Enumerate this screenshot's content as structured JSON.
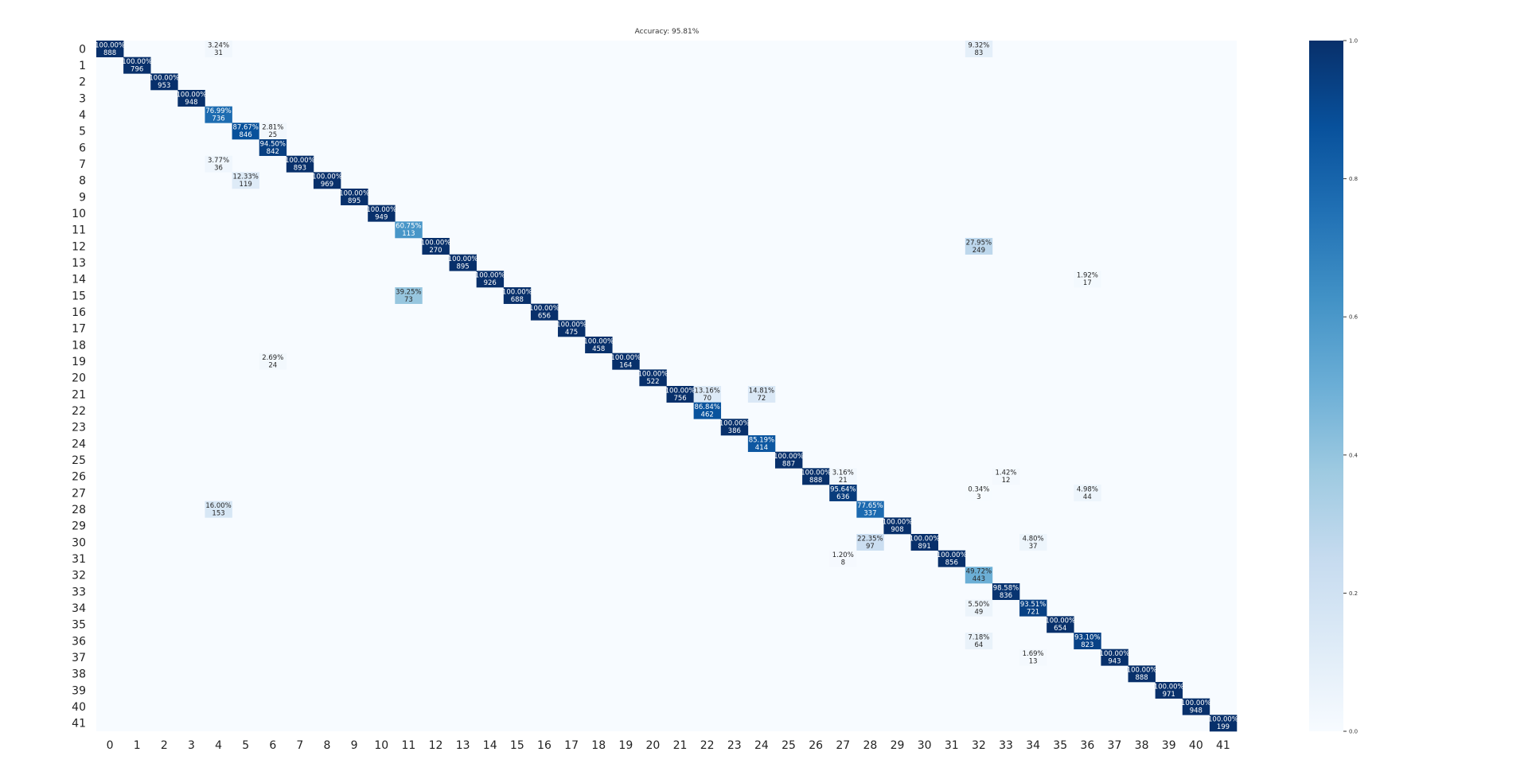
{
  "chart_data": {
    "type": "heatmap",
    "title": "Accuracy: 95.81%",
    "xlabel": "",
    "ylabel": "",
    "x_ticks": [
      "0",
      "1",
      "2",
      "3",
      "4",
      "5",
      "6",
      "7",
      "8",
      "9",
      "10",
      "11",
      "12",
      "13",
      "14",
      "15",
      "16",
      "17",
      "18",
      "19",
      "20",
      "21",
      "22",
      "23",
      "24",
      "25",
      "26",
      "27",
      "28",
      "29",
      "30",
      "31",
      "32",
      "33",
      "34",
      "35",
      "36",
      "37",
      "38",
      "39",
      "40",
      "41"
    ],
    "y_ticks": [
      "0",
      "1",
      "2",
      "3",
      "4",
      "5",
      "6",
      "7",
      "8",
      "9",
      "10",
      "11",
      "12",
      "13",
      "14",
      "15",
      "16",
      "17",
      "18",
      "19",
      "20",
      "21",
      "22",
      "23",
      "24",
      "25",
      "26",
      "27",
      "28",
      "29",
      "30",
      "31",
      "32",
      "33",
      "34",
      "35",
      "36",
      "37",
      "38",
      "39",
      "40",
      "41"
    ],
    "colorscale": "Blues",
    "colorbar": {
      "range": [
        0,
        1
      ],
      "ticks": [
        "0.0",
        "0.2",
        "0.4",
        "0.6",
        "0.8",
        "1.0"
      ]
    },
    "annotated_cells": [
      {
        "row": 0,
        "col": 0,
        "pct": "100.00%",
        "count": "888",
        "value": 1.0
      },
      {
        "row": 0,
        "col": 4,
        "pct": "3.24%",
        "count": "31",
        "value": 0.0324
      },
      {
        "row": 0,
        "col": 32,
        "pct": "9.32%",
        "count": "83",
        "value": 0.0932
      },
      {
        "row": 1,
        "col": 1,
        "pct": "100.00%",
        "count": "796",
        "value": 1.0
      },
      {
        "row": 2,
        "col": 2,
        "pct": "100.00%",
        "count": "953",
        "value": 1.0
      },
      {
        "row": 3,
        "col": 3,
        "pct": "100.00%",
        "count": "948",
        "value": 1.0
      },
      {
        "row": 4,
        "col": 4,
        "pct": "76.99%",
        "count": "736",
        "value": 0.7699
      },
      {
        "row": 5,
        "col": 5,
        "pct": "87.67%",
        "count": "846",
        "value": 0.8767
      },
      {
        "row": 5,
        "col": 6,
        "pct": "2.81%",
        "count": "25",
        "value": 0.0281
      },
      {
        "row": 6,
        "col": 6,
        "pct": "94.50%",
        "count": "842",
        "value": 0.945
      },
      {
        "row": 7,
        "col": 4,
        "pct": "3.77%",
        "count": "36",
        "value": 0.0377
      },
      {
        "row": 7,
        "col": 7,
        "pct": "100.00%",
        "count": "893",
        "value": 1.0
      },
      {
        "row": 8,
        "col": 5,
        "pct": "12.33%",
        "count": "119",
        "value": 0.1233
      },
      {
        "row": 8,
        "col": 8,
        "pct": "100.00%",
        "count": "969",
        "value": 1.0
      },
      {
        "row": 9,
        "col": 9,
        "pct": "100.00%",
        "count": "895",
        "value": 1.0
      },
      {
        "row": 10,
        "col": 10,
        "pct": "100.00%",
        "count": "949",
        "value": 1.0
      },
      {
        "row": 11,
        "col": 11,
        "pct": "60.75%",
        "count": "113",
        "value": 0.6075
      },
      {
        "row": 12,
        "col": 12,
        "pct": "100.00%",
        "count": "270",
        "value": 1.0
      },
      {
        "row": 12,
        "col": 32,
        "pct": "27.95%",
        "count": "249",
        "value": 0.2795
      },
      {
        "row": 13,
        "col": 13,
        "pct": "100.00%",
        "count": "895",
        "value": 1.0
      },
      {
        "row": 14,
        "col": 14,
        "pct": "100.00%",
        "count": "926",
        "value": 1.0
      },
      {
        "row": 14,
        "col": 36,
        "pct": "1.92%",
        "count": "17",
        "value": 0.0192
      },
      {
        "row": 15,
        "col": 11,
        "pct": "39.25%",
        "count": "73",
        "value": 0.3925
      },
      {
        "row": 15,
        "col": 15,
        "pct": "100.00%",
        "count": "688",
        "value": 1.0
      },
      {
        "row": 16,
        "col": 16,
        "pct": "100.00%",
        "count": "656",
        "value": 1.0
      },
      {
        "row": 17,
        "col": 17,
        "pct": "100.00%",
        "count": "475",
        "value": 1.0
      },
      {
        "row": 18,
        "col": 18,
        "pct": "100.00%",
        "count": "458",
        "value": 1.0
      },
      {
        "row": 19,
        "col": 6,
        "pct": "2.69%",
        "count": "24",
        "value": 0.0269
      },
      {
        "row": 19,
        "col": 19,
        "pct": "100.00%",
        "count": "164",
        "value": 1.0
      },
      {
        "row": 20,
        "col": 20,
        "pct": "100.00%",
        "count": "522",
        "value": 1.0
      },
      {
        "row": 21,
        "col": 21,
        "pct": "100.00%",
        "count": "756",
        "value": 1.0
      },
      {
        "row": 21,
        "col": 22,
        "pct": "13.16%",
        "count": "70",
        "value": 0.1316
      },
      {
        "row": 21,
        "col": 24,
        "pct": "14.81%",
        "count": "72",
        "value": 0.1481
      },
      {
        "row": 22,
        "col": 22,
        "pct": "86.84%",
        "count": "462",
        "value": 0.8684
      },
      {
        "row": 23,
        "col": 23,
        "pct": "100.00%",
        "count": "386",
        "value": 1.0
      },
      {
        "row": 24,
        "col": 24,
        "pct": "85.19%",
        "count": "414",
        "value": 0.8519
      },
      {
        "row": 25,
        "col": 25,
        "pct": "100.00%",
        "count": "887",
        "value": 1.0
      },
      {
        "row": 26,
        "col": 26,
        "pct": "100.00%",
        "count": "888",
        "value": 1.0
      },
      {
        "row": 26,
        "col": 27,
        "pct": "3.16%",
        "count": "21",
        "value": 0.0316
      },
      {
        "row": 26,
        "col": 33,
        "pct": "1.42%",
        "count": "12",
        "value": 0.0142
      },
      {
        "row": 27,
        "col": 27,
        "pct": "95.64%",
        "count": "636",
        "value": 0.9564
      },
      {
        "row": 27,
        "col": 32,
        "pct": "0.34%",
        "count": "3",
        "value": 0.0034
      },
      {
        "row": 27,
        "col": 36,
        "pct": "4.98%",
        "count": "44",
        "value": 0.0498
      },
      {
        "row": 28,
        "col": 4,
        "pct": "16.00%",
        "count": "153",
        "value": 0.16
      },
      {
        "row": 28,
        "col": 28,
        "pct": "77.65%",
        "count": "337",
        "value": 0.7765
      },
      {
        "row": 29,
        "col": 29,
        "pct": "100.00%",
        "count": "908",
        "value": 1.0
      },
      {
        "row": 30,
        "col": 28,
        "pct": "22.35%",
        "count": "97",
        "value": 0.2235
      },
      {
        "row": 30,
        "col": 30,
        "pct": "100.00%",
        "count": "891",
        "value": 1.0
      },
      {
        "row": 30,
        "col": 34,
        "pct": "4.80%",
        "count": "37",
        "value": 0.048
      },
      {
        "row": 31,
        "col": 27,
        "pct": "1.20%",
        "count": "8",
        "value": 0.012
      },
      {
        "row": 31,
        "col": 31,
        "pct": "100.00%",
        "count": "856",
        "value": 1.0
      },
      {
        "row": 32,
        "col": 32,
        "pct": "49.72%",
        "count": "443",
        "value": 0.4972
      },
      {
        "row": 33,
        "col": 33,
        "pct": "98.58%",
        "count": "836",
        "value": 0.9858
      },
      {
        "row": 34,
        "col": 32,
        "pct": "5.50%",
        "count": "49",
        "value": 0.055
      },
      {
        "row": 34,
        "col": 34,
        "pct": "93.51%",
        "count": "721",
        "value": 0.9351
      },
      {
        "row": 35,
        "col": 35,
        "pct": "100.00%",
        "count": "654",
        "value": 1.0
      },
      {
        "row": 36,
        "col": 32,
        "pct": "7.18%",
        "count": "64",
        "value": 0.0718
      },
      {
        "row": 36,
        "col": 36,
        "pct": "93.10%",
        "count": "823",
        "value": 0.931
      },
      {
        "row": 37,
        "col": 34,
        "pct": "1.69%",
        "count": "13",
        "value": 0.0169
      },
      {
        "row": 37,
        "col": 37,
        "pct": "100.00%",
        "count": "943",
        "value": 1.0
      },
      {
        "row": 38,
        "col": 38,
        "pct": "100.00%",
        "count": "888",
        "value": 1.0
      },
      {
        "row": 39,
        "col": 39,
        "pct": "100.00%",
        "count": "971",
        "value": 1.0
      },
      {
        "row": 40,
        "col": 40,
        "pct": "100.00%",
        "count": "948",
        "value": 1.0
      },
      {
        "row": 41,
        "col": 41,
        "pct": "100.00%",
        "count": "199",
        "value": 1.0
      }
    ]
  }
}
